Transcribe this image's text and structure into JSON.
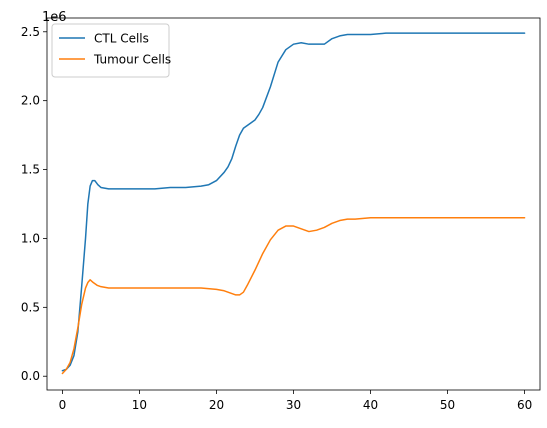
{
  "chart_data": {
    "type": "line",
    "title": "",
    "xlabel": "",
    "ylabel": "",
    "y_scale_label": "1e6",
    "xlim": [
      -2,
      62
    ],
    "ylim": [
      -0.1,
      2.6
    ],
    "x_ticks": [
      0,
      10,
      20,
      30,
      40,
      50,
      60
    ],
    "x_tick_labels": [
      "0",
      "10",
      "20",
      "30",
      "40",
      "50",
      "60"
    ],
    "y_ticks": [
      0.0,
      0.5,
      1.0,
      1.5,
      2.0,
      2.5
    ],
    "y_tick_labels": [
      "0.0",
      "0.5",
      "1.0",
      "1.5",
      "2.0",
      "2.5"
    ],
    "grid": false,
    "legend_position": "upper-left",
    "series": [
      {
        "name": "CTL Cells",
        "color": "#1f77b4",
        "x": [
          0,
          0.5,
          1,
          1.5,
          2,
          2.5,
          3,
          3.3,
          3.6,
          3.9,
          4.2,
          4.6,
          5,
          6,
          7,
          8,
          9,
          10,
          12,
          14,
          16,
          18,
          19,
          20,
          21,
          21.5,
          22,
          22.5,
          23,
          23.5,
          24,
          24.5,
          25,
          25.5,
          26,
          27,
          28,
          29,
          30,
          31,
          32,
          33,
          34,
          35,
          36,
          37,
          38,
          40,
          42,
          44,
          46,
          48,
          50,
          52,
          54,
          56,
          58,
          60
        ],
        "y": [
          0.04,
          0.05,
          0.08,
          0.15,
          0.32,
          0.65,
          1.0,
          1.25,
          1.38,
          1.42,
          1.42,
          1.39,
          1.37,
          1.36,
          1.36,
          1.36,
          1.36,
          1.36,
          1.36,
          1.37,
          1.37,
          1.38,
          1.39,
          1.42,
          1.48,
          1.52,
          1.58,
          1.67,
          1.75,
          1.8,
          1.82,
          1.84,
          1.86,
          1.9,
          1.95,
          2.1,
          2.28,
          2.37,
          2.41,
          2.42,
          2.41,
          2.41,
          2.41,
          2.45,
          2.47,
          2.48,
          2.48,
          2.48,
          2.49,
          2.49,
          2.49,
          2.49,
          2.49,
          2.49,
          2.49,
          2.49,
          2.49,
          2.49
        ]
      },
      {
        "name": "Tumour Cells",
        "color": "#ff7f0e",
        "x": [
          0,
          0.5,
          1,
          1.5,
          2,
          2.5,
          3,
          3.3,
          3.6,
          4,
          4.5,
          5,
          6,
          8,
          10,
          12,
          14,
          16,
          18,
          20,
          21,
          22,
          22.5,
          23,
          23.5,
          24,
          25,
          26,
          27,
          28,
          29,
          30,
          31,
          32,
          33,
          34,
          35,
          36,
          37,
          38,
          40,
          42,
          44,
          46,
          48,
          50,
          52,
          54,
          56,
          58,
          60
        ],
        "y": [
          0.02,
          0.05,
          0.1,
          0.2,
          0.35,
          0.52,
          0.64,
          0.68,
          0.7,
          0.68,
          0.66,
          0.65,
          0.64,
          0.64,
          0.64,
          0.64,
          0.64,
          0.64,
          0.64,
          0.63,
          0.62,
          0.6,
          0.59,
          0.59,
          0.61,
          0.66,
          0.77,
          0.89,
          0.99,
          1.06,
          1.09,
          1.09,
          1.07,
          1.05,
          1.06,
          1.08,
          1.11,
          1.13,
          1.14,
          1.14,
          1.15,
          1.15,
          1.15,
          1.15,
          1.15,
          1.15,
          1.15,
          1.15,
          1.15,
          1.15,
          1.15
        ]
      }
    ]
  }
}
